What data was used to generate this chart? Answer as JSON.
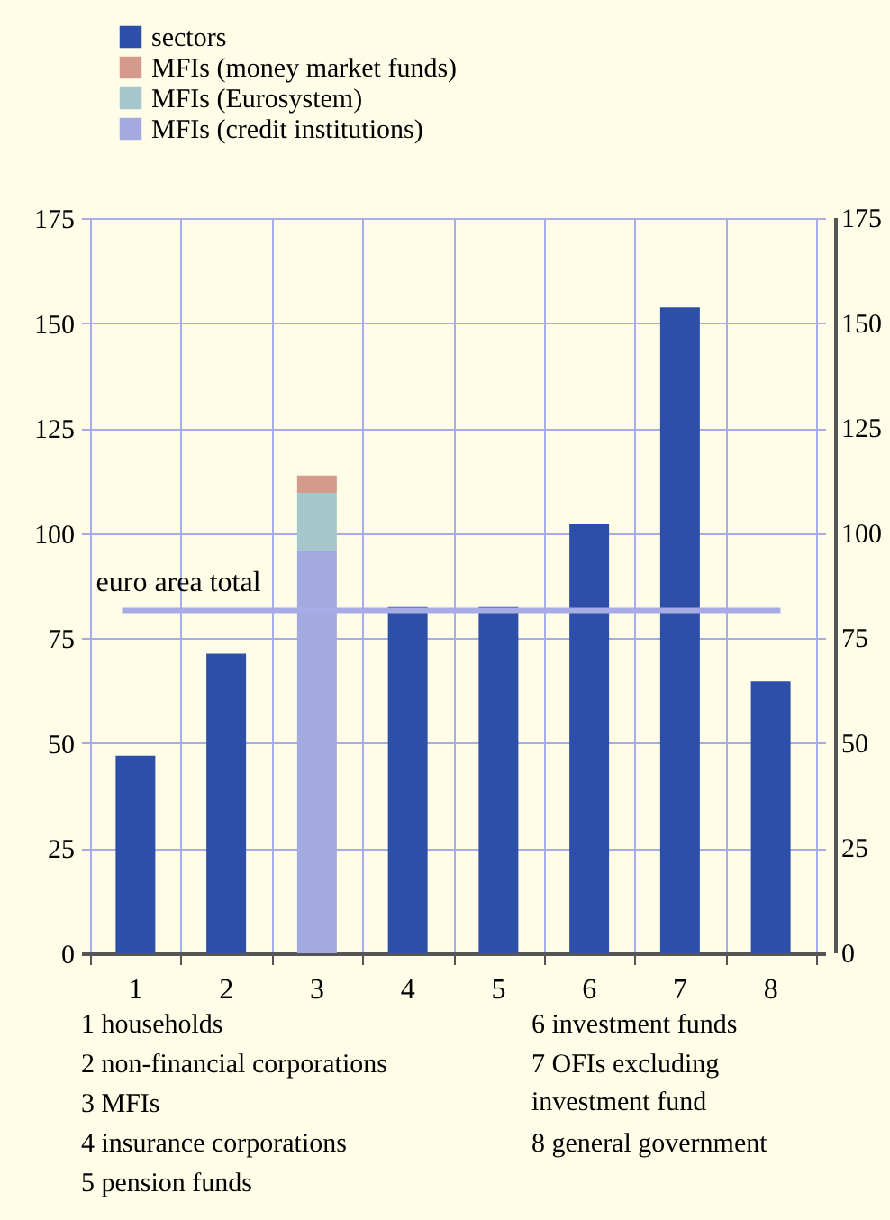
{
  "chart_data": {
    "type": "bar",
    "stacked": true,
    "categories": [
      "1",
      "2",
      "3",
      "4",
      "5",
      "6",
      "7",
      "8"
    ],
    "series": [
      {
        "name": "sectors",
        "color": "#2e4fa8",
        "values": [
          47,
          71.3,
          null,
          82.4,
          82.4,
          102.3,
          153.7,
          64.7
        ]
      },
      {
        "name": "MFIs (credit institutions)",
        "color": "#a3aae0",
        "values": [
          null,
          null,
          96,
          null,
          null,
          null,
          null,
          null
        ]
      },
      {
        "name": "MFIs (Eurosystem)",
        "color": "#a6c8cc",
        "values": [
          null,
          null,
          13.6,
          null,
          null,
          null,
          null,
          null
        ]
      },
      {
        "name": "MFIs (money market funds)",
        "color": "#d49a8c",
        "values": [
          null,
          null,
          4.1,
          null,
          null,
          null,
          null,
          null
        ]
      }
    ],
    "ylim": [
      0,
      175
    ],
    "yticks": [
      0,
      25,
      50,
      75,
      100,
      125,
      150,
      175
    ],
    "y2lim": [
      0,
      175
    ],
    "y2ticks": [
      0,
      25,
      50,
      75,
      100,
      125,
      150,
      175
    ],
    "grid": true,
    "legend": "top left",
    "ref_lines": [
      {
        "axis": "y",
        "value": 81.6,
        "label": "euro area total",
        "color": "#a8ace6"
      }
    ],
    "annotations": [
      "1  households",
      "2  non-financial corporations",
      "3  MFIs",
      "4  insurance corporations",
      "5  pension funds",
      "6  investment funds",
      "7  OFIs excluding\n investment fund",
      "8  general government"
    ]
  }
}
